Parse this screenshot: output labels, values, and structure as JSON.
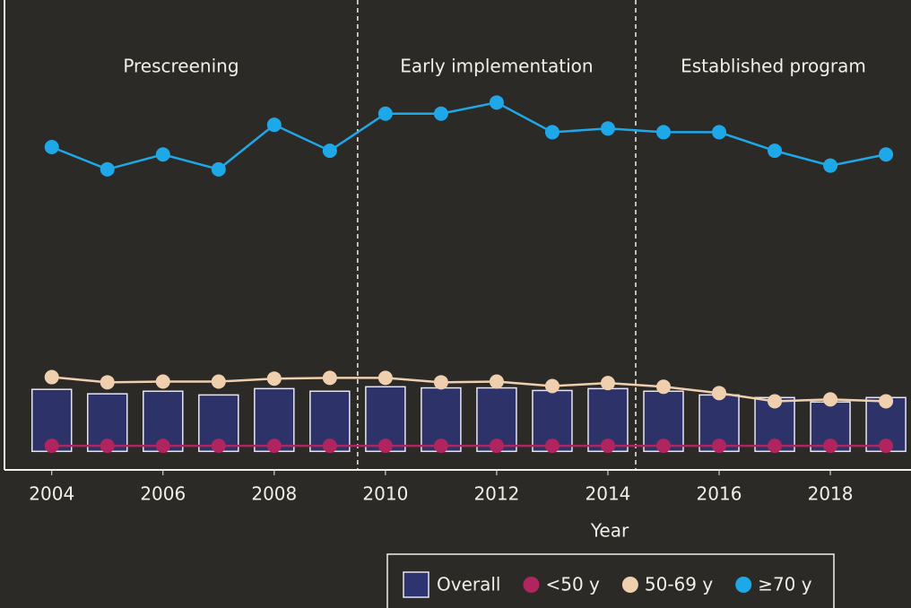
{
  "chart_data": {
    "type": "bar-line",
    "x": [
      2004,
      2005,
      2006,
      2007,
      2008,
      2009,
      2010,
      2011,
      2012,
      2013,
      2014,
      2015,
      2016,
      2017,
      2018,
      2019
    ],
    "xlim": [
      2003.15,
      2019.45
    ],
    "xticks": [
      2004,
      2006,
      2008,
      2010,
      2012,
      2014,
      2016,
      2018
    ],
    "xlabel": "Year",
    "ylim": [
      -5,
      100
    ],
    "phases": [
      {
        "label": "Prescreening",
        "start": 2003.15,
        "end": 2009.5
      },
      {
        "label": "Early implementation",
        "start": 2009.5,
        "end": 2014.5
      },
      {
        "label": "Established program",
        "start": 2014.5,
        "end": 2019.45
      }
    ],
    "series": [
      {
        "name": "Overall",
        "kind": "bar",
        "color": "#2e3470",
        "values": [
          16.7,
          15.5,
          16.2,
          15.2,
          16.9,
          16.2,
          17.4,
          17.1,
          17.1,
          16.4,
          16.9,
          16.2,
          15.2,
          14.5,
          13.3,
          14.5
        ]
      },
      {
        "name": "<50 y",
        "kind": "line",
        "color": "#b0245f",
        "values": [
          1.5,
          1.5,
          1.5,
          1.5,
          1.5,
          1.5,
          1.5,
          1.5,
          1.5,
          1.5,
          1.5,
          1.5,
          1.5,
          1.5,
          1.5,
          1.5
        ]
      },
      {
        "name": "50-69 y",
        "kind": "line",
        "color": "#f0cfae",
        "values": [
          20,
          18.6,
          18.8,
          18.8,
          19.6,
          19.8,
          19.8,
          18.6,
          18.8,
          17.6,
          18.4,
          17.4,
          15.7,
          13.5,
          14,
          13.5
        ]
      },
      {
        "name": "≥70 y",
        "kind": "line",
        "color": "#1ea8e8",
        "values": [
          82,
          76,
          80,
          76,
          88,
          81,
          91,
          91,
          94,
          86,
          87,
          86,
          86,
          81,
          77,
          80
        ]
      }
    ]
  }
}
